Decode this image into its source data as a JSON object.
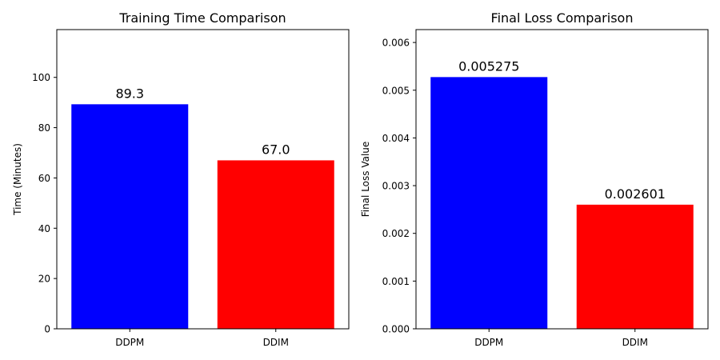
{
  "chart_data": [
    {
      "type": "bar",
      "title": "Training Time Comparison",
      "xlabel": "",
      "ylabel": "Time (Minutes)",
      "categories": [
        "DDPM",
        "DDIM"
      ],
      "values": [
        89.3,
        67.0
      ],
      "value_labels": [
        "89.3",
        "67.0"
      ],
      "colors": [
        "#0000ff",
        "#ff0000"
      ],
      "ylim": [
        0,
        119
      ],
      "yticks": [
        0,
        20,
        40,
        60,
        80,
        100
      ],
      "ytick_labels": [
        "0",
        "20",
        "40",
        "60",
        "80",
        "100"
      ],
      "grid": false
    },
    {
      "type": "bar",
      "title": "Final Loss Comparison",
      "xlabel": "",
      "ylabel": "Final Loss Value",
      "categories": [
        "DDPM",
        "DDIM"
      ],
      "values": [
        0.005275,
        0.002601
      ],
      "value_labels": [
        "0.005275",
        "0.002601"
      ],
      "colors": [
        "#0000ff",
        "#ff0000"
      ],
      "ylim": [
        0,
        0.00627
      ],
      "yticks": [
        0,
        0.001,
        0.002,
        0.003,
        0.004,
        0.005,
        0.006
      ],
      "ytick_labels": [
        "0.000",
        "0.001",
        "0.002",
        "0.003",
        "0.004",
        "0.005",
        "0.006"
      ],
      "grid": false
    }
  ]
}
